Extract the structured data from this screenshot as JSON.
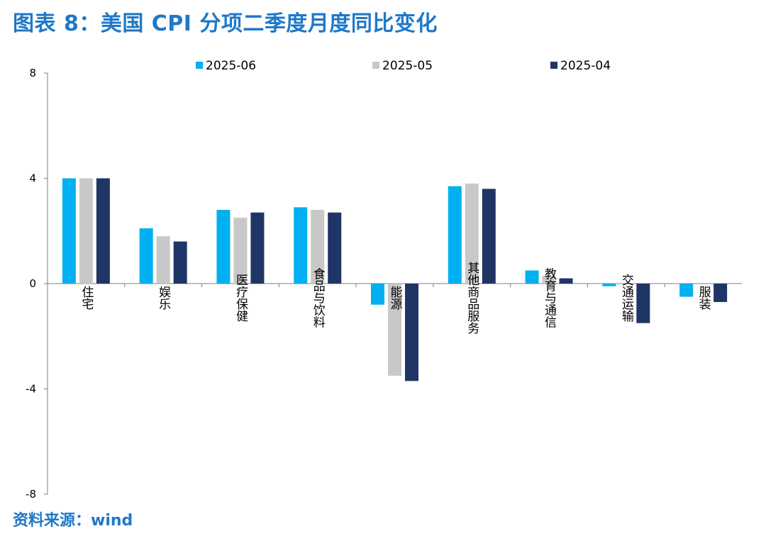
{
  "title": "图表 8：美国 CPI 分项二季度月度同比变化",
  "source": "资料来源：wind",
  "chart_data": {
    "type": "bar",
    "categories": [
      "住宅",
      "娱乐",
      "医疗保健",
      "食品与饮料",
      "能源",
      "其他商品服务",
      "教育与通信",
      "交通运输",
      "服装"
    ],
    "series": [
      {
        "name": "2025-06",
        "color": "#00b0f0",
        "values": [
          4.0,
          2.1,
          2.8,
          2.9,
          -0.8,
          3.7,
          0.5,
          -0.1,
          -0.5
        ]
      },
      {
        "name": "2025-05",
        "color": "#c8c8c8",
        "values": [
          4.0,
          1.8,
          2.5,
          2.8,
          -3.5,
          3.8,
          0.3,
          0.0,
          0.0
        ]
      },
      {
        "name": "2025-04",
        "color": "#1f3566",
        "values": [
          4.0,
          1.6,
          2.7,
          2.7,
          -3.7,
          3.6,
          0.2,
          -1.5,
          -0.7
        ]
      }
    ],
    "ylim": [
      -8,
      8
    ],
    "yticks": [
      "8",
      "4",
      "0",
      "-4",
      "-8"
    ],
    "legend_position": "top",
    "grid": false
  }
}
